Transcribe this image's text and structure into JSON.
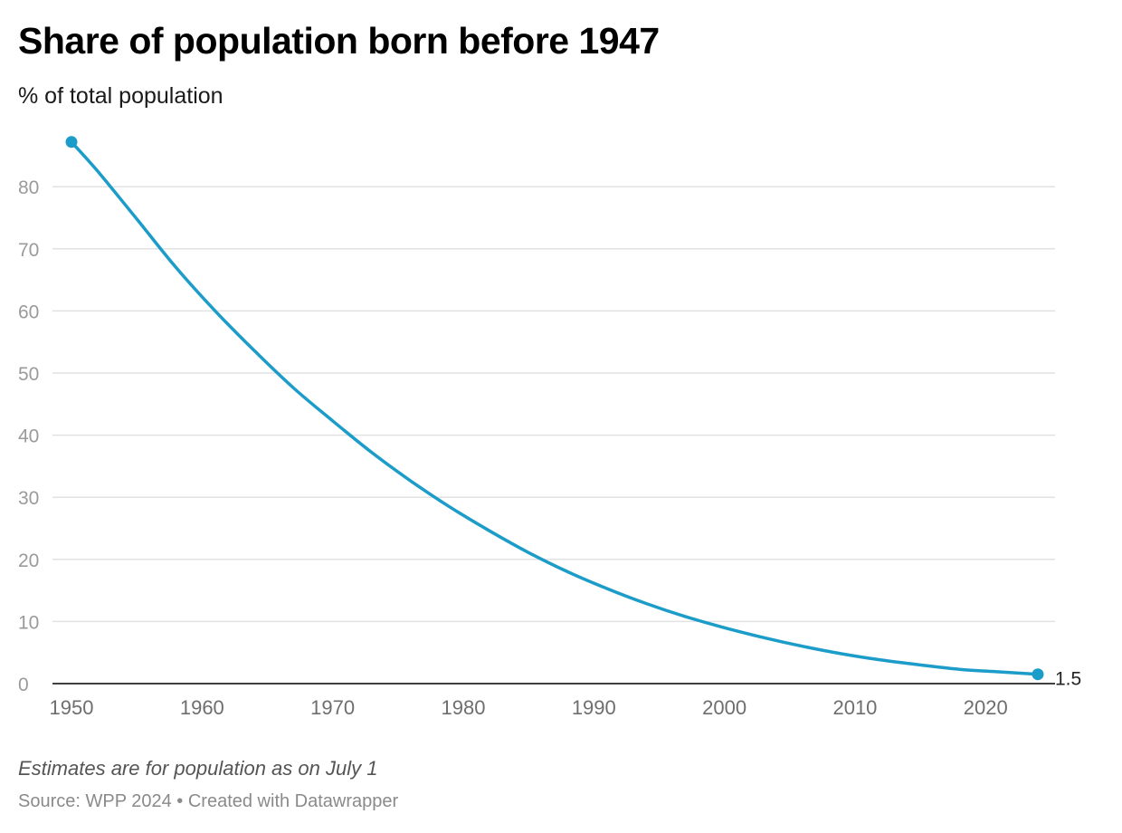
{
  "header": {
    "title": "Share of population born before 1947",
    "subtitle": "% of total population"
  },
  "footer": {
    "notes": "Estimates are for population as on July 1",
    "source": "Source: WPP 2024 • Created with Datawrapper"
  },
  "colors": {
    "line": "#1c9cc8",
    "grid": "#e2e2e2",
    "baseline": "#000000"
  },
  "chart_data": {
    "type": "line",
    "title": "Share of population born before 1947",
    "subtitle": "% of total population",
    "xlabel": "",
    "ylabel": "",
    "xlim": [
      1950,
      2024
    ],
    "ylim": [
      0,
      90
    ],
    "yticks": [
      0,
      10,
      20,
      30,
      40,
      50,
      60,
      70,
      80
    ],
    "xticks": [
      1950,
      1960,
      1970,
      1980,
      1990,
      2000,
      2010,
      2020
    ],
    "grid": true,
    "series": [
      {
        "x": [
          1950,
          1952,
          1955,
          1958,
          1961,
          1964,
          1967,
          1970,
          1973,
          1976,
          1979,
          1982,
          1985,
          1988,
          1991,
          1994,
          1997,
          2000,
          2003,
          2006,
          2009,
          2012,
          2015,
          2018,
          2021,
          2024
        ],
        "values": [
          87.2,
          82.5,
          74.8,
          67.0,
          60.0,
          53.6,
          47.6,
          42.3,
          37.2,
          32.6,
          28.4,
          24.6,
          21.1,
          18.0,
          15.3,
          12.9,
          10.8,
          9.0,
          7.4,
          6.0,
          4.8,
          3.8,
          3.0,
          2.3,
          1.9,
          1.5
        ]
      }
    ],
    "annotations": [
      {
        "x": 2024,
        "label": "1.5"
      }
    ]
  }
}
